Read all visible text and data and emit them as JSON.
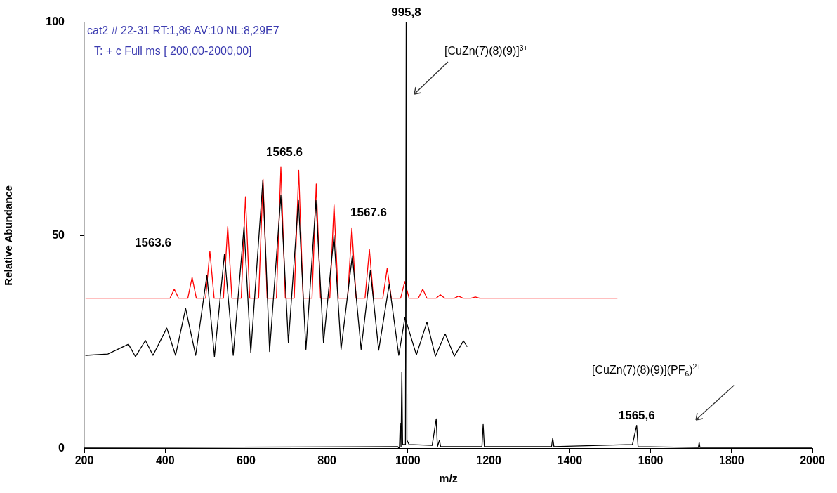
{
  "chart_data": {
    "type": "line",
    "xlabel": "m/z",
    "ylabel": "Relative Abundance",
    "xlim": [
      200,
      2000
    ],
    "xticks": [
      200,
      400,
      600,
      800,
      1000,
      1200,
      1400,
      1600,
      1800,
      2000
    ],
    "ylim": [
      0,
      100
    ],
    "yticks": [
      0,
      50,
      100
    ],
    "grid": false,
    "legend": false,
    "marker": "none",
    "line_style": "solid",
    "series": [
      {
        "color": "#000000",
        "x": [
          200,
          975,
          979,
          981,
          983,
          985,
          987,
          994,
          995.8,
          997.6,
          1003,
          1060,
          1070,
          1073,
          1078,
          1081,
          1183,
          1186,
          1189,
          1355,
          1358,
          1361,
          1555,
          1565.6,
          1569,
          1718,
          1720,
          1722,
          2000
        ],
        "values": [
          0.3,
          0.5,
          0,
          6,
          0.5,
          18,
          1,
          1,
          100,
          2,
          1,
          0.8,
          7,
          0.5,
          2,
          0.5,
          0.5,
          5.7,
          0.5,
          0.5,
          2.5,
          0.5,
          1,
          5.5,
          0.5,
          0.3,
          1.5,
          0.3,
          0.3
        ]
      },
      {
        "color": "#000000",
        "x": [
          203.6,
          258.3,
          309.2,
          326.5,
          351.2,
          369.9,
          404.0,
          425.7,
          450.5,
          475.3,
          503.1,
          521.8,
          546.5,
          568.2,
          594.9,
          611.6,
          641.4,
          658.1,
          686.0,
          704.6,
          729.4,
          748.0,
          772.8,
          791.4,
          817.4,
          834.8,
          862.7,
          884.4,
          907.3,
          927.8,
          953.9,
          977.5,
          992.7,
          1021.0,
          1047.1,
          1067.9,
          1092.2,
          1114.8,
          1137.3,
          1146.0
        ],
        "values": [
          21.9,
          22.2,
          24.5,
          21.6,
          25.4,
          21.9,
          28.3,
          21.9,
          32.9,
          21.9,
          40.7,
          21.6,
          45.6,
          21.9,
          52.1,
          22.5,
          62.9,
          22.8,
          59.4,
          24.8,
          58.2,
          23.3,
          58.2,
          24.8,
          50.0,
          23.3,
          45.3,
          23.3,
          41.8,
          23.1,
          38.6,
          21.9,
          30.8,
          22.0,
          29.7,
          21.7,
          26.9,
          21.7,
          25.3,
          24.0
        ]
      },
      {
        "color": "#ff0000",
        "x": [
          203.5,
          412,
          422.5,
          433,
          456,
          466.6,
          477,
          500,
          510.5,
          521,
          544,
          554.6,
          565,
          588,
          598.5,
          609,
          631,
          641.9,
          652,
          675,
          686.0,
          697,
          719,
          730.1,
          741,
          763,
          773.5,
          784,
          807,
          817.4,
          828,
          851,
          861.5,
          872,
          894,
          904.9,
          915,
          938,
          948.8,
          959,
          982,
          992.2,
          1003,
          1026,
          1036.7,
          1047,
          1070,
          1080.1,
          1091,
          1115,
          1125.2,
          1136,
          1156,
          1166.8,
          1177,
          1517.5
        ],
        "values": [
          35.3,
          35.3,
          37.4,
          35.3,
          35.3,
          40.2,
          35.3,
          35.3,
          46.3,
          35.3,
          35.3,
          52.1,
          35.3,
          35.3,
          59.1,
          35.3,
          35.3,
          63.2,
          35.3,
          35.3,
          66.0,
          35.3,
          35.3,
          65.3,
          35.3,
          35.3,
          62.1,
          35.3,
          35.3,
          57.2,
          35.3,
          35.3,
          51.8,
          35.3,
          35.3,
          46.7,
          35.3,
          35.3,
          42.3,
          35.3,
          35.3,
          39.2,
          35.3,
          35.3,
          37.4,
          35.3,
          35.3,
          36.1,
          35.3,
          35.3,
          35.8,
          35.3,
          35.3,
          35.6,
          35.3,
          35.3
        ]
      }
    ],
    "annotations": [
      "cat2 # 22-31 RT:1,86 AV:10 NL:8,29E7",
      "T: + c Full ms [ 200,00-2000,00]",
      {
        "text": "995,8",
        "x": 995.8,
        "y": 100
      },
      {
        "text": "1565,6",
        "x": 1565.6,
        "y": 5.5
      },
      "1563.6",
      "1565.6",
      "1567.6",
      "[CuZn(7)(8)(9)]$^{3+}$",
      "[CuZn(7)(8)(9)](PF$_{6}$)$^{2+}$"
    ]
  }
}
